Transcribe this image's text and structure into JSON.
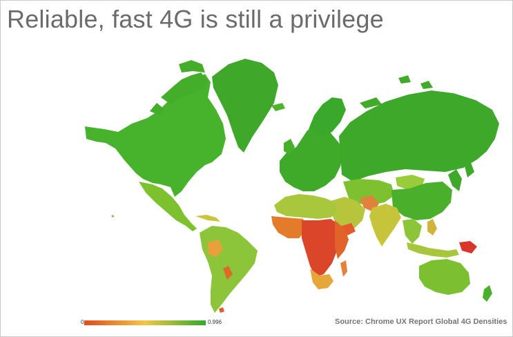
{
  "title": "Reliable, fast 4G is still a privilege",
  "legend": {
    "min_label": "0",
    "max_label": "0.996",
    "colors": [
      "#e04a1d",
      "#f2c744",
      "#2fab28"
    ]
  },
  "source": "Source: Chrome UX Report Global 4G Densities"
}
